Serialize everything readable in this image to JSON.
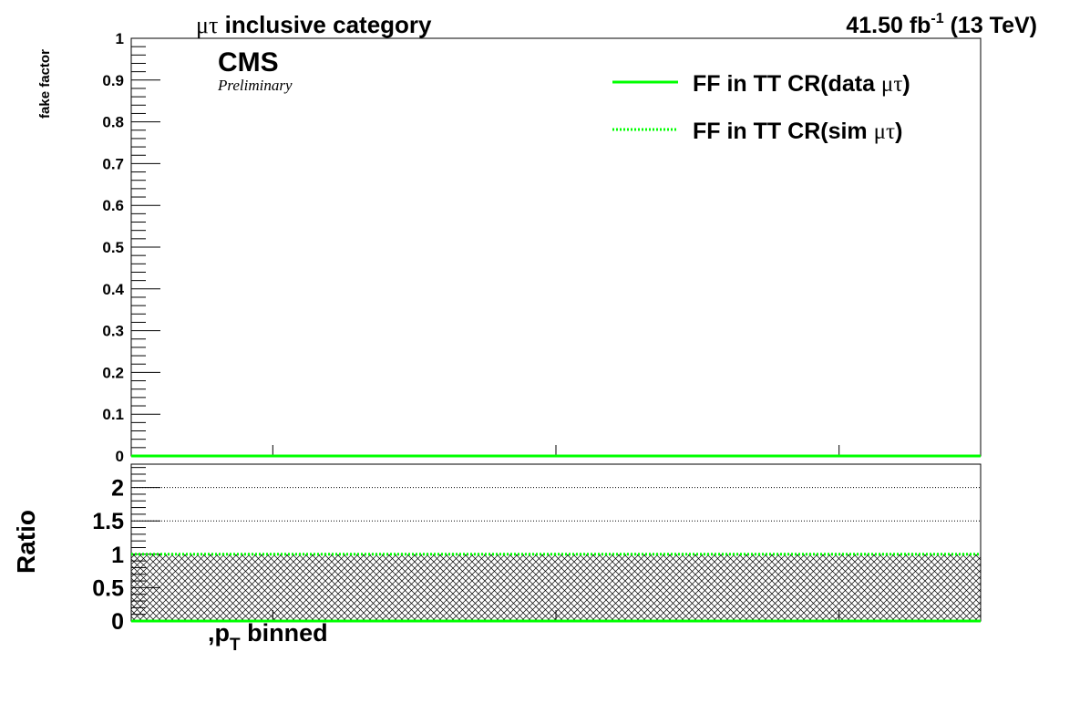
{
  "header": {
    "category_symbol": "μτ",
    "category_text": " inclusive category",
    "lumi_value": "41.50 fb",
    "lumi_exp": "-1",
    "energy": " (13 TeV)"
  },
  "branding": {
    "cms": "CMS",
    "preliminary": "Preliminary"
  },
  "legend": {
    "items": [
      {
        "prefix": "FF in TT CR(data ",
        "symbol": "μτ",
        "suffix": ")",
        "style": "solid",
        "color": "#00ff00"
      },
      {
        "prefix": "FF in TT CR(sim ",
        "symbol": "μτ",
        "suffix": ")",
        "style": "dotted",
        "color": "#00ff00"
      }
    ]
  },
  "colors": {
    "series": "#00ff00",
    "axis": "#000000",
    "hatch": "#000000"
  },
  "xlabel": {
    "prefix": ",p",
    "sub": "T",
    "suffix": " binned"
  },
  "chart_data": [
    {
      "type": "line",
      "title": "μτ inclusive category",
      "ylabel": "fake factor",
      "xlabel": ",pT binned",
      "ylim": [
        0,
        1
      ],
      "yticks": [
        0,
        0.1,
        0.2,
        0.3,
        0.4,
        0.5,
        0.6,
        0.7,
        0.8,
        0.9,
        1
      ],
      "ytick_labels": [
        "0",
        "0.1",
        "0.2",
        "0.3",
        "0.4",
        "0.5",
        "0.6",
        "0.7",
        "0.8",
        "0.9",
        "1"
      ],
      "xlim": [
        0,
        3
      ],
      "xticks": [
        0.5,
        1.5,
        2.5
      ],
      "series": [
        {
          "name": "FF in TT CR(data μτ)",
          "style": "solid",
          "x": [
            0,
            3
          ],
          "values": [
            0,
            0
          ]
        },
        {
          "name": "FF in TT CR(sim μτ)",
          "style": "dotted",
          "x": [
            0,
            3
          ],
          "values": [
            0,
            0
          ]
        }
      ]
    },
    {
      "type": "area",
      "ylabel": "Ratio",
      "ylim": [
        0,
        2.35
      ],
      "yticks": [
        0,
        0.5,
        1,
        1.5,
        2
      ],
      "ytick_labels": [
        "0",
        "0.5",
        "1",
        "1.5",
        "2"
      ],
      "gridlines": [
        1.5,
        2
      ],
      "xlim": [
        0,
        3
      ],
      "xticks": [
        0.5,
        1.5,
        2.5
      ],
      "band": {
        "low": 0,
        "high": 1,
        "style": "hatched"
      },
      "series": [
        {
          "name": "ratio line at 1",
          "style": "dotted",
          "x": [
            0,
            3
          ],
          "values": [
            1,
            1
          ]
        },
        {
          "name": "ratio line at 0",
          "style": "solid",
          "x": [
            0,
            3
          ],
          "values": [
            0,
            0
          ]
        }
      ]
    }
  ]
}
